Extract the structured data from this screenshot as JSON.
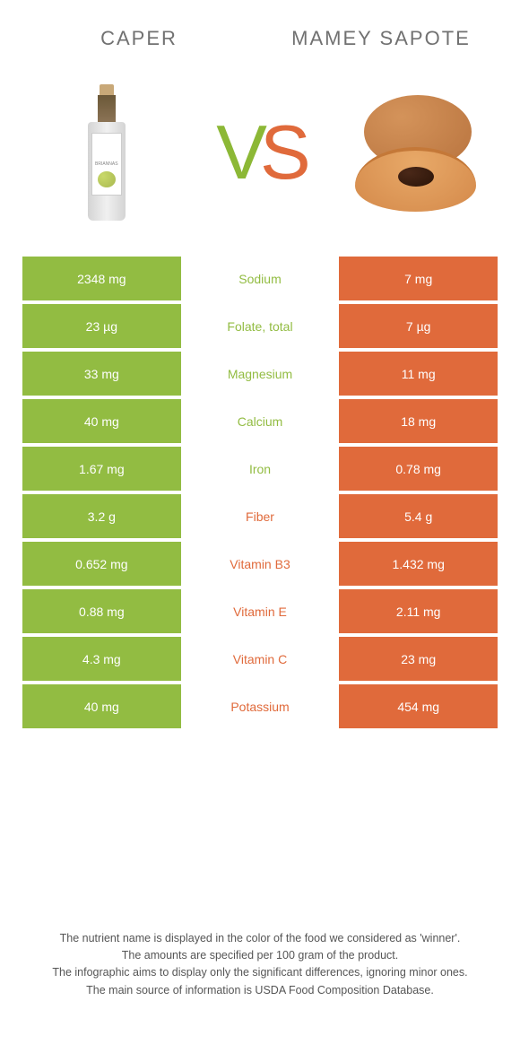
{
  "colors": {
    "left": "#92bc42",
    "right": "#e06a3b",
    "bg": "#ffffff",
    "text_muted": "#717171"
  },
  "header": {
    "left_title": "Caper",
    "right_title": "Mamey Sapote"
  },
  "vs": {
    "v": "V",
    "s": "S"
  },
  "rows": [
    {
      "left": "2348 mg",
      "label": "Sodium",
      "right": "7 mg",
      "winner": "left"
    },
    {
      "left": "23 µg",
      "label": "Folate, total",
      "right": "7 µg",
      "winner": "left"
    },
    {
      "left": "33 mg",
      "label": "Magnesium",
      "right": "11 mg",
      "winner": "left"
    },
    {
      "left": "40 mg",
      "label": "Calcium",
      "right": "18 mg",
      "winner": "left"
    },
    {
      "left": "1.67 mg",
      "label": "Iron",
      "right": "0.78 mg",
      "winner": "left"
    },
    {
      "left": "3.2 g",
      "label": "Fiber",
      "right": "5.4 g",
      "winner": "right"
    },
    {
      "left": "0.652 mg",
      "label": "Vitamin B3",
      "right": "1.432 mg",
      "winner": "right"
    },
    {
      "left": "0.88 mg",
      "label": "Vitamin E",
      "right": "2.11 mg",
      "winner": "right"
    },
    {
      "left": "4.3 mg",
      "label": "Vitamin C",
      "right": "23 mg",
      "winner": "right"
    },
    {
      "left": "40 mg",
      "label": "Potassium",
      "right": "454 mg",
      "winner": "right"
    }
  ],
  "footer": {
    "line1": "The nutrient name is displayed in the color of the food we considered as 'winner'.",
    "line2": "The amounts are specified per 100 gram of the product.",
    "line3": "The infographic aims to display only the significant differences, ignoring minor ones.",
    "line4": "The main source of information is USDA Food Composition Database."
  }
}
